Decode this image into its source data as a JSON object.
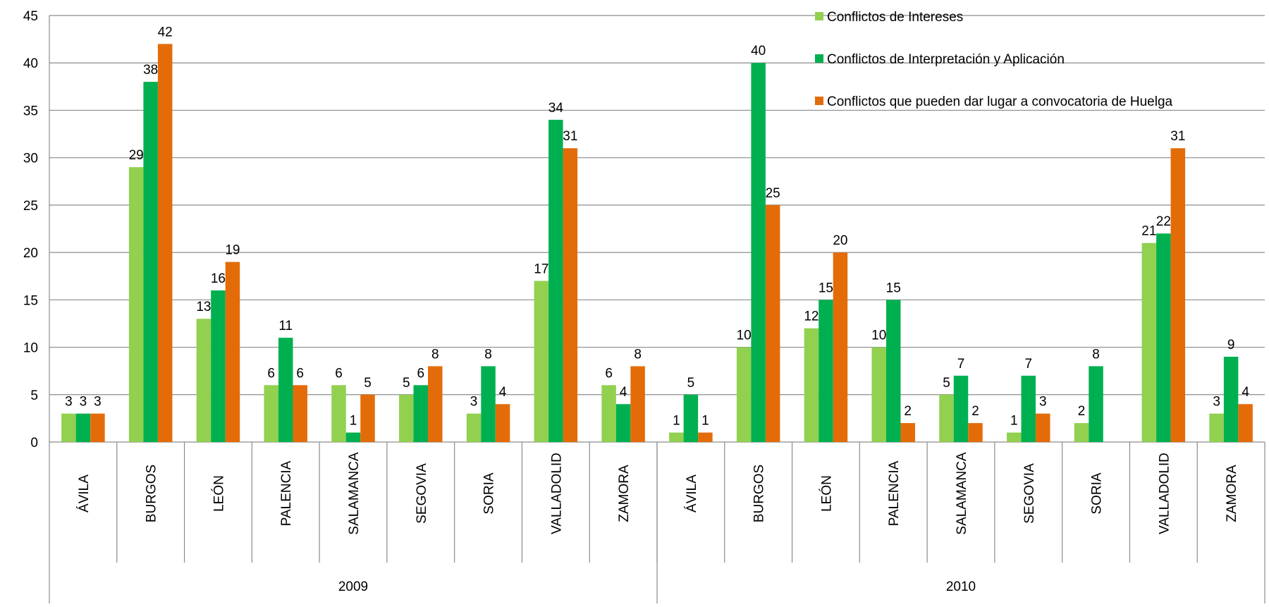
{
  "chart_data": {
    "type": "bar",
    "title": "",
    "xlabel": "",
    "ylabel": "",
    "ylim": [
      0,
      45
    ],
    "yticks": [
      0,
      5,
      10,
      15,
      20,
      25,
      30,
      35,
      40,
      45
    ],
    "grid": true,
    "legend_position": "top-right",
    "groups": [
      {
        "label": "2009",
        "categories": [
          "ÁVILA",
          "BURGOS",
          "LEÓN",
          "PALENCIA",
          "SALAMANCA",
          "SEGOVIA",
          "SORIA",
          "VALLADOLID",
          "ZAMORA"
        ]
      },
      {
        "label": "2010",
        "categories": [
          "ÁVILA",
          "BURGOS",
          "LEÓN",
          "PALENCIA",
          "SALAMANCA",
          "SEGOVIA",
          "SORIA",
          "VALLADOLID",
          "ZAMORA"
        ]
      }
    ],
    "series": [
      {
        "name": "Conflictos de Intereses",
        "color": "#92D050",
        "values": [
          3,
          29,
          13,
          6,
          6,
          5,
          3,
          17,
          6,
          1,
          10,
          12,
          10,
          5,
          1,
          2,
          21,
          3
        ]
      },
      {
        "name": "Conflictos de Interpretación y Aplicación",
        "color": "#00B050",
        "values": [
          3,
          38,
          16,
          11,
          1,
          6,
          8,
          34,
          4,
          5,
          40,
          15,
          15,
          7,
          7,
          8,
          22,
          9
        ]
      },
      {
        "name": "Conflictos que pueden dar lugar a convocatoria de Huelga",
        "color": "#E36C09",
        "values": [
          3,
          42,
          19,
          6,
          5,
          8,
          4,
          31,
          8,
          1,
          25,
          20,
          2,
          2,
          3,
          null,
          31,
          4
        ]
      }
    ]
  }
}
